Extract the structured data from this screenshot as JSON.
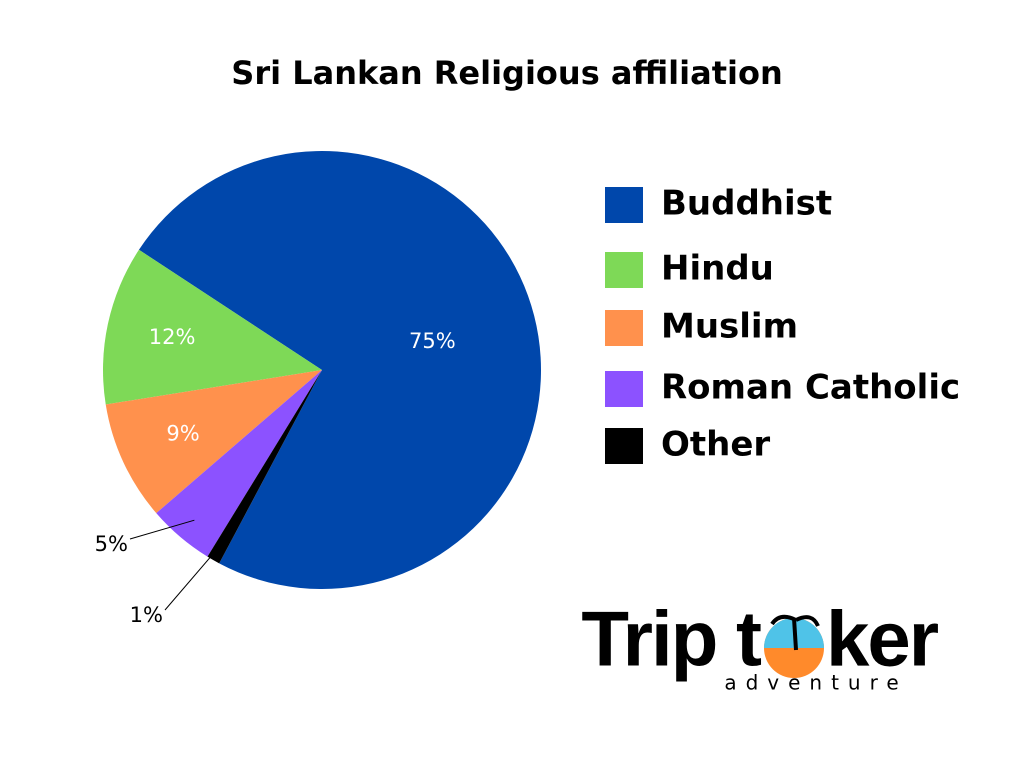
{
  "chart_data": {
    "type": "pie",
    "title": "Sri Lankan Religious affiliation",
    "categories": [
      "Buddhist",
      "Hindu",
      "Muslim",
      "Roman Catholic",
      "Other"
    ],
    "values": [
      75,
      12,
      9,
      5,
      1
    ],
    "value_labels": [
      "75%",
      "12%",
      "9%",
      "5%",
      "1%"
    ],
    "colors": [
      "#0047ab",
      "#7ed957",
      "#ff914d",
      "#8c52ff",
      "#000000"
    ],
    "legend": "right"
  },
  "logo": {
    "left": "Trip t",
    "right": "ker",
    "tagline": "adventure"
  }
}
